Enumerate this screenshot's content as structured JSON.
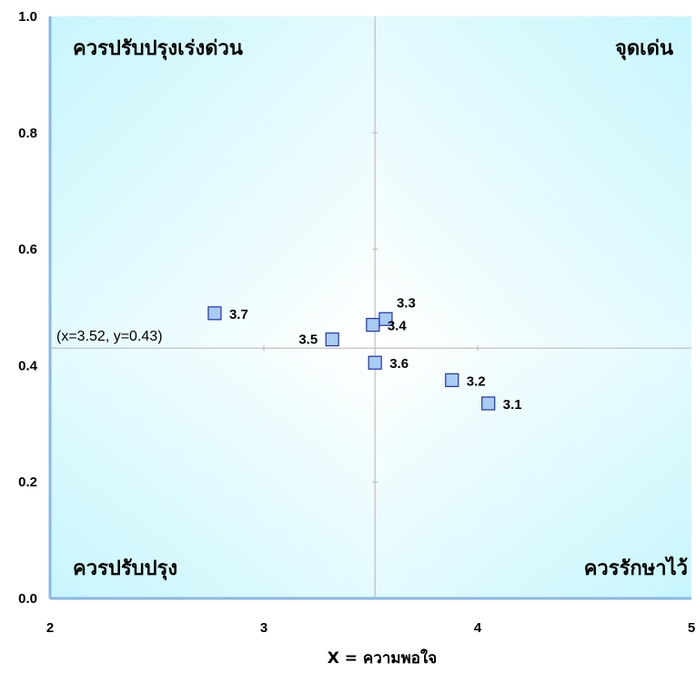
{
  "chart_data": {
    "type": "scatter",
    "xlim": [
      2,
      5
    ],
    "ylim": [
      0,
      1
    ],
    "x_ticks": [
      "2",
      "3",
      "4",
      "5"
    ],
    "y_ticks": [
      "0.0",
      "0.2",
      "0.4",
      "0.6",
      "0.8",
      "1.0"
    ],
    "xlabel": "X = ความพอใจ",
    "ylabel": "",
    "grid": false,
    "reference_point": {
      "x": 3.52,
      "y": 0.43,
      "label": "(x=3.52, y=0.43)"
    },
    "quadrants": {
      "top_left": "ควรปรับปรุงเร่งด่วน",
      "top_right": "จุดเด่น",
      "bottom_left": "ควรปรับปรุง",
      "bottom_right": "ควรรักษาไว้"
    },
    "points": [
      {
        "label": "3.1",
        "x": 4.05,
        "y": 0.335
      },
      {
        "label": "3.2",
        "x": 3.88,
        "y": 0.375
      },
      {
        "label": "3.3",
        "x": 3.57,
        "y": 0.48
      },
      {
        "label": "3.4",
        "x": 3.51,
        "y": 0.47
      },
      {
        "label": "3.5",
        "x": 3.32,
        "y": 0.445
      },
      {
        "label": "3.6",
        "x": 3.52,
        "y": 0.405
      },
      {
        "label": "3.7",
        "x": 2.77,
        "y": 0.49
      }
    ],
    "colors": {
      "marker_fill": "#a8ccf2",
      "marker_stroke": "#1f2fb3",
      "axis": "#87b7e6",
      "divider": "#b5b5b5",
      "bg_edge": "#c7f6fc"
    }
  }
}
